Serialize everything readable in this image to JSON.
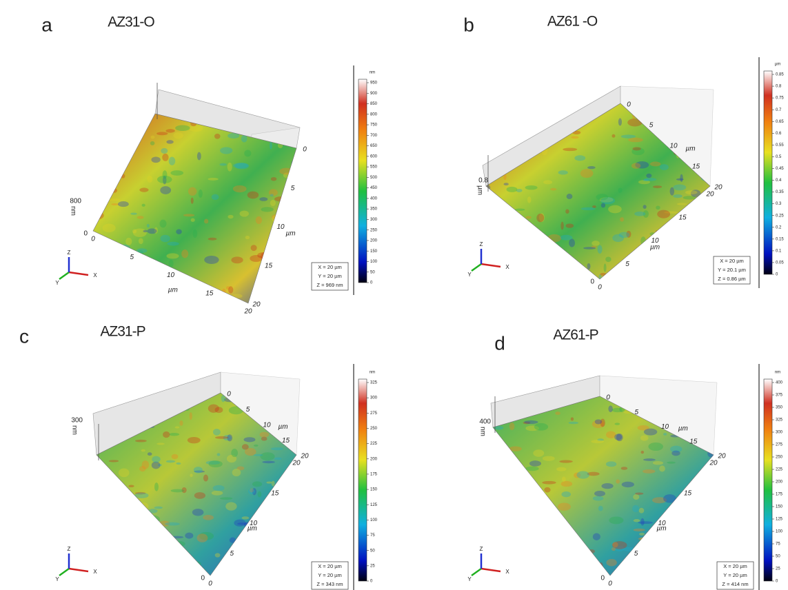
{
  "panels": [
    {
      "letter": "a",
      "title": "AZ31-O",
      "colorbar_unit": "nm",
      "colorbar_ticks": [
        0,
        50,
        100,
        150,
        200,
        250,
        300,
        350,
        400,
        450,
        500,
        550,
        600,
        650,
        700,
        750,
        800,
        850,
        900,
        950
      ],
      "info": [
        "X = 20 µm",
        "Y = 20 µm",
        "Z = 969 nm"
      ],
      "z_label": "800",
      "z_unit": "nm",
      "z_zero": "0",
      "x_ticks": [
        0,
        5,
        10,
        15,
        20
      ],
      "y_ticks": [
        0,
        5,
        10,
        15,
        20
      ],
      "x_unit": "µm",
      "y_unit": "µm",
      "icon_labels": [
        "X",
        "Y",
        "Z"
      ]
    },
    {
      "letter": "b",
      "title": "AZ61 -O",
      "colorbar_unit": "µm",
      "colorbar_ticks": [
        0,
        0.05,
        0.1,
        0.15,
        0.2,
        0.25,
        0.3,
        0.35,
        0.4,
        0.45,
        0.5,
        0.55,
        0.6,
        0.65,
        0.7,
        0.75,
        0.8,
        0.85
      ],
      "info": [
        "X = 20 µm",
        "Y = 20.1 µm",
        "Z = 0.86 µm"
      ],
      "z_label": "0.8",
      "z_unit": "µm",
      "z_zero": "0",
      "x_ticks": [
        0,
        5,
        10,
        15,
        20
      ],
      "y_ticks": [
        0,
        5,
        10,
        15,
        20
      ],
      "x_unit": "µm",
      "y_unit": "µm",
      "icon_labels": [
        "X",
        "Y",
        "Z"
      ]
    },
    {
      "letter": "c",
      "title": "AZ31-P",
      "colorbar_unit": "nm",
      "colorbar_ticks": [
        0,
        25,
        50,
        75,
        100,
        125,
        150,
        175,
        200,
        225,
        250,
        275,
        300,
        325
      ],
      "info": [
        "X = 20 µm",
        "Y = 20 µm",
        "Z = 343 nm"
      ],
      "z_label": "300",
      "z_unit": "nm",
      "z_zero": "0",
      "x_ticks": [
        0,
        5,
        10,
        15,
        20
      ],
      "y_ticks": [
        0,
        5,
        10,
        15,
        20
      ],
      "x_unit": "µm",
      "y_unit": "µm",
      "icon_labels": [
        "X",
        "Y",
        "Z"
      ]
    },
    {
      "letter": "d",
      "title": "AZ61-P",
      "colorbar_unit": "nm",
      "colorbar_ticks": [
        0,
        25,
        50,
        75,
        100,
        125,
        150,
        175,
        200,
        225,
        250,
        275,
        300,
        325,
        350,
        375,
        400
      ],
      "info": [
        "X = 20 µm",
        "Y = 20 µm",
        "Z = 414 nm"
      ],
      "z_label": "400",
      "z_unit": "nm",
      "z_zero": "0",
      "x_ticks": [
        0,
        5,
        10,
        15,
        20
      ],
      "y_ticks": [
        0,
        5,
        10,
        15,
        20
      ],
      "x_unit": "µm",
      "y_unit": "µm",
      "icon_labels": [
        "X",
        "Y",
        "Z"
      ]
    }
  ]
}
